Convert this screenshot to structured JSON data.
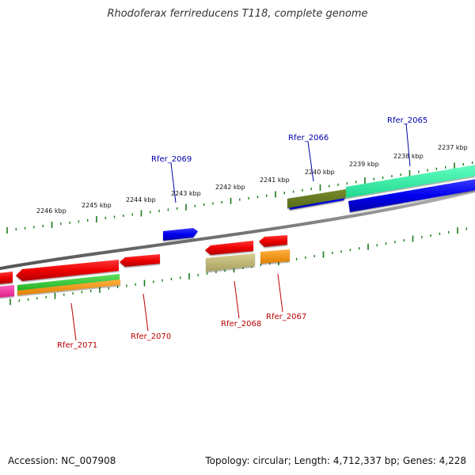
{
  "title": "Rhodoferax ferrireducens T118, complete genome",
  "footer": {
    "accession": "Accession: NC_007908",
    "summary": "Topology: circular; Length: 4,712,337 bp; Genes: 4,228"
  },
  "colors": {
    "backbone": "#888888",
    "tick": "#1a7a1a",
    "tick_label": "#111111",
    "gene_label_forward": "#0000aa",
    "gene_label_reverse": "#bb0000",
    "cds_forward": "#0000ee",
    "cds_reverse": "#ee0000"
  },
  "chart_data": {
    "type": "genome-map",
    "scale_unit": "kbp",
    "scale_labels": [
      "2246 kbp",
      "2245 kbp",
      "2244 kbp",
      "2243 kbp",
      "2242 kbp",
      "2241 kbp",
      "2240 kbp",
      "2239 kbp",
      "2238 kbp",
      "2237 kbp"
    ],
    "genes": [
      {
        "name": "Rfer_2069",
        "strand": "forward"
      },
      {
        "name": "Rfer_2066",
        "strand": "forward"
      },
      {
        "name": "Rfer_2065",
        "strand": "forward"
      },
      {
        "name": "Rfer_2071",
        "strand": "reverse"
      },
      {
        "name": "Rfer_2070",
        "strand": "reverse"
      },
      {
        "name": "Rfer_2068",
        "strand": "reverse"
      },
      {
        "name": "Rfer_2067",
        "strand": "reverse"
      }
    ]
  }
}
